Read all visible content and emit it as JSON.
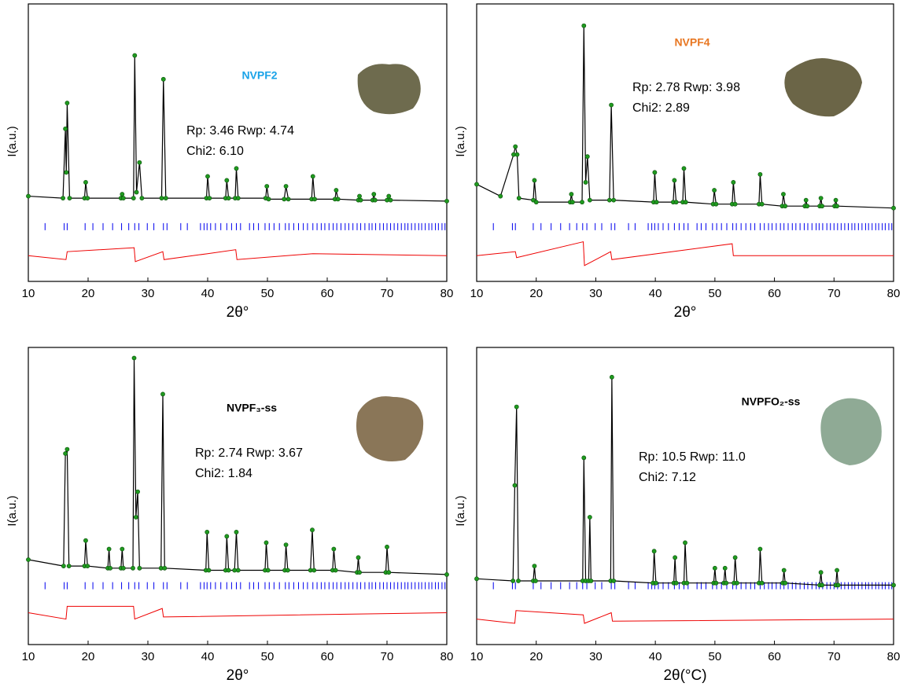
{
  "chart_data": [
    {
      "type": "line",
      "label": "NVPF2",
      "label_color": "#1aa3e8",
      "stats": [
        "Rp:  3.46    Rwp:  4.74",
        "Chi2:  6.10"
      ],
      "x_label": "2θ°",
      "y_label": "I(a.u.)",
      "xlim": [
        10,
        80
      ],
      "xticks": [
        10,
        20,
        30,
        40,
        50,
        60,
        70,
        80
      ],
      "ylim": [
        -40,
        100
      ],
      "x": [
        10,
        15.8,
        16.2,
        16.35,
        16.5,
        16.9,
        19.4,
        19.6,
        19.9,
        25.5,
        25.7,
        25.9,
        27.6,
        27.8,
        28.1,
        28.6,
        29,
        32.3,
        32.6,
        33,
        39.8,
        40,
        40.3,
        43,
        43.2,
        43.5,
        44.6,
        44.8,
        45.1,
        49.7,
        49.9,
        50.2,
        52.8,
        53.1,
        53.5,
        57.4,
        57.6,
        57.9,
        61.3,
        61.5,
        61.8,
        65.2,
        65.4,
        65.6,
        67.6,
        67.8,
        68,
        70,
        70.3,
        70.6,
        80
      ],
      "values": [
        3,
        2,
        37,
        15,
        50,
        2,
        2,
        10,
        2,
        2,
        4,
        2,
        2,
        74,
        5,
        20,
        2,
        2,
        62,
        2,
        2,
        13,
        2,
        2,
        11,
        2,
        2,
        17,
        2,
        2,
        8,
        1.5,
        1.5,
        8,
        1.5,
        1.5,
        13,
        1.5,
        1.5,
        6,
        1.5,
        1,
        3,
        1,
        1,
        4,
        1,
        1,
        3,
        1,
        0.5
      ],
      "difference": {
        "x": [
          10,
          16.3,
          16.5,
          27.7,
          27.9,
          32.5,
          32.7,
          40,
          44.7,
          44.9,
          57.6,
          80
        ],
        "values": [
          -27,
          -29,
          -25,
          -23,
          -30,
          -25,
          -29,
          -26,
          -24,
          -29,
          -26,
          -27
        ]
      },
      "reflections": [
        12.8,
        16,
        16.5,
        19.5,
        20.8,
        22.5,
        24.1,
        25.6,
        26.8,
        27.8,
        28.5,
        29.9,
        31,
        32.6,
        33.2,
        35.5,
        36.6,
        38.8,
        39.4,
        39.9,
        40.5,
        41.3,
        42.2,
        43.2,
        44,
        44.8,
        45.5,
        47,
        47.7,
        48.5,
        49.6,
        50.3,
        51.1,
        52,
        53,
        53.6,
        54.4,
        55.2,
        56,
        56.7,
        57.6,
        58.3,
        59,
        59.6,
        60.3,
        61,
        61.6,
        62.3,
        63,
        63.6,
        64.3,
        65,
        65.6,
        66.3,
        67,
        67.5,
        68.1,
        68.8,
        69.4,
        70,
        70.6,
        71.2,
        71.8,
        72.4,
        73,
        73.5,
        74.1,
        74.7,
        75.3,
        75.8,
        76.4,
        77,
        77.5,
        78.1,
        78.6,
        79.2,
        79.7
      ],
      "observed_color": "#1f9a1f",
      "calculated_color": "#000000",
      "reflection_color": "#0000ee",
      "difference_color": "#ee0000"
    },
    {
      "type": "line",
      "label": "NVPF4",
      "label_color": "#e87722",
      "stats": [
        "Rp: 2.78    Rwp: 3.98",
        "Chi2: 2.89"
      ],
      "x_label": "2θ°",
      "y_label": "I(a.u.)",
      "xlim": [
        10,
        80
      ],
      "xticks": [
        10,
        20,
        30,
        40,
        50,
        60,
        70,
        80
      ],
      "ylim": [
        -40,
        100
      ],
      "x": [
        10,
        14,
        16.2,
        16.5,
        16.8,
        17.1,
        19.5,
        19.7,
        20,
        25.7,
        25.9,
        26.1,
        27.7,
        28,
        28.3,
        28.6,
        29,
        32.3,
        32.6,
        33,
        39.7,
        39.9,
        40.2,
        43,
        43.2,
        43.5,
        44.6,
        44.8,
        45.1,
        49.7,
        49.9,
        50.2,
        52.9,
        53.1,
        53.4,
        57.4,
        57.6,
        57.9,
        61.3,
        61.5,
        61.8,
        65.1,
        65.3,
        65.5,
        67.6,
        67.8,
        68,
        70.1,
        70.3,
        70.5,
        80
      ],
      "values": [
        9,
        3,
        24,
        28,
        24,
        2,
        1,
        11,
        0,
        0,
        4,
        0,
        0,
        89,
        10,
        23,
        1,
        1,
        49,
        1,
        0,
        15,
        0,
        0,
        11,
        0,
        0,
        17,
        0,
        -1,
        6,
        -1,
        -1,
        10,
        -1,
        -1,
        14,
        -1,
        -2,
        4,
        -2,
        -2,
        1,
        -2,
        -2,
        2,
        -2,
        -2,
        1,
        -2,
        -3
      ],
      "difference": {
        "x": [
          10,
          16.5,
          16.7,
          27.9,
          28.1,
          32.5,
          32.7,
          52.9,
          53.1,
          80
        ],
        "values": [
          -27,
          -25,
          -28,
          -20,
          -32,
          -25,
          -29,
          -21,
          -27,
          -27
        ]
      },
      "reflections": [
        12.8,
        16,
        16.5,
        19.5,
        20.8,
        22.5,
        24.1,
        25.6,
        26.8,
        27.8,
        28.5,
        29.9,
        31,
        32.6,
        33.2,
        35.5,
        36.6,
        38.8,
        39.4,
        39.9,
        40.5,
        41.3,
        42.2,
        43.2,
        44,
        44.8,
        45.5,
        47,
        47.7,
        48.5,
        49.6,
        50.3,
        51.1,
        52,
        53,
        53.6,
        54.4,
        55.2,
        56,
        56.7,
        57.6,
        58.3,
        59,
        59.6,
        60.3,
        61,
        61.6,
        62.3,
        63,
        63.6,
        64.3,
        65,
        65.6,
        66.3,
        67,
        67.5,
        68.1,
        68.8,
        69.4,
        70,
        70.6,
        71.2,
        71.8,
        72.4,
        73,
        73.5,
        74.1,
        74.7,
        75.3,
        75.8,
        76.4,
        77,
        77.5,
        78.1,
        78.6,
        79.2,
        79.7
      ],
      "observed_color": "#1f9a1f",
      "calculated_color": "#000000",
      "reflection_color": "#0000ee",
      "difference_color": "#ee0000"
    },
    {
      "type": "line",
      "label": "NVPF₃-ss",
      "label_color": "#000000",
      "stats": [
        "Rp: 2.74     Rwp: 3.67",
        "Chi2: 1.84"
      ],
      "x_label": "2θ°",
      "y_label": "I(a.u.)",
      "xlim": [
        10,
        80
      ],
      "xticks": [
        10,
        20,
        30,
        40,
        50,
        60,
        70,
        80
      ],
      "ylim": [
        -40,
        100
      ],
      "x": [
        10,
        15.9,
        16.2,
        16.5,
        16.8,
        19.4,
        19.6,
        19.9,
        23.3,
        23.5,
        23.7,
        25.5,
        25.7,
        25.9,
        27.5,
        27.7,
        28,
        28.3,
        28.6,
        32.2,
        32.5,
        32.8,
        39.7,
        39.9,
        40.2,
        43,
        43.2,
        43.5,
        44.5,
        44.8,
        45.1,
        49.6,
        49.8,
        50.1,
        52.9,
        53.1,
        53.4,
        57.2,
        57.5,
        57.8,
        60.9,
        61.1,
        61.4,
        65,
        65.2,
        65.4,
        69.8,
        70,
        70.3,
        80
      ],
      "values": [
        0,
        -3,
        50,
        52,
        -3,
        -3,
        9,
        -3,
        -4,
        5,
        -4,
        -4,
        5,
        -4,
        -4,
        95,
        20,
        32,
        -4,
        -4,
        78,
        -4,
        -5,
        13,
        -5,
        -5,
        11,
        -5,
        -5,
        13,
        -5,
        -5,
        8,
        -5,
        -5,
        7,
        -5,
        -5,
        14,
        -5,
        -5,
        5,
        -5,
        -6,
        1,
        -6,
        -6,
        6,
        -6,
        -7
      ],
      "difference": {
        "x": [
          10,
          16.3,
          16.5,
          27.6,
          27.8,
          32.4,
          32.6,
          80
        ],
        "values": [
          -25,
          -28,
          -22,
          -22,
          -28,
          -23,
          -27,
          -25
        ]
      },
      "reflections": [
        12.8,
        16,
        16.5,
        19.5,
        20.8,
        22.5,
        24.1,
        25.6,
        26.8,
        27.8,
        28.5,
        29.9,
        31,
        32.6,
        33.2,
        35.5,
        36.6,
        38.8,
        39.4,
        39.9,
        40.5,
        41.3,
        42.2,
        43.2,
        44,
        44.8,
        45.5,
        47,
        47.7,
        48.5,
        49.6,
        50.3,
        51.1,
        52,
        53,
        53.6,
        54.4,
        55.2,
        56,
        56.7,
        57.6,
        58.3,
        59,
        59.6,
        60.3,
        61,
        61.6,
        62.3,
        63,
        63.6,
        64.3,
        65,
        65.6,
        66.3,
        67,
        67.5,
        68.1,
        68.8,
        69.4,
        70,
        70.6,
        71.2,
        71.8,
        72.4,
        73,
        73.5,
        74.1,
        74.7,
        75.3,
        75.8,
        76.4,
        77,
        77.5,
        78.1,
        78.6,
        79.2,
        79.7
      ],
      "observed_color": "#1f9a1f",
      "calculated_color": "#000000",
      "reflection_color": "#0000ee",
      "difference_color": "#ee0000"
    },
    {
      "type": "line",
      "label": "NVPFO₂-ss",
      "label_color": "#000000",
      "stats": [
        "Rp: 10.5     Rwp: 11.0",
        "Chi2: 7.12"
      ],
      "x_label": "2θ(°C)",
      "y_label": "I(a.u.)",
      "xlim": [
        10,
        80
      ],
      "xticks": [
        10,
        20,
        30,
        40,
        50,
        60,
        70,
        80
      ],
      "ylim": [
        -40,
        100
      ],
      "x": [
        10,
        16.1,
        16.4,
        16.7,
        17,
        19.5,
        19.7,
        19.9,
        27.8,
        28,
        28.3,
        28.8,
        29,
        29.2,
        32.5,
        32.7,
        33,
        39.6,
        39.8,
        40.1,
        43.1,
        43.3,
        43.5,
        44.8,
        45,
        45.3,
        49.8,
        50,
        50.2,
        51.5,
        51.7,
        51.9,
        53.2,
        53.4,
        53.7,
        57.4,
        57.6,
        57.9,
        61.4,
        61.6,
        61.8,
        67.6,
        67.8,
        68,
        70.3,
        70.5,
        70.7,
        80
      ],
      "values": [
        -9,
        -10,
        35,
        72,
        -10,
        -10,
        -3,
        -10,
        -10,
        48,
        -10,
        -10,
        20,
        -10,
        -10,
        86,
        -10,
        -11,
        4,
        -11,
        -11,
        1,
        -11,
        -11,
        8,
        -11,
        -11,
        -4,
        -11,
        -11,
        -4,
        -11,
        -11,
        1,
        -11,
        -11,
        5,
        -11,
        -11,
        -5,
        -11,
        -12,
        -6,
        -12,
        -12,
        -5,
        -12,
        -12
      ],
      "difference": {
        "x": [
          10,
          16.4,
          16.6,
          27.9,
          28.1,
          32.6,
          32.8,
          80
        ],
        "values": [
          -28,
          -30,
          -24,
          -26,
          -30,
          -25,
          -29,
          -28
        ]
      },
      "reflections": [
        12.8,
        16,
        16.5,
        19.5,
        20.8,
        22.5,
        24.1,
        25.6,
        26.8,
        27.8,
        28.5,
        29.9,
        31,
        32.6,
        33.2,
        35.5,
        36.6,
        38.8,
        39.4,
        39.9,
        40.5,
        41.3,
        42.2,
        43.2,
        44,
        44.8,
        45.5,
        47,
        47.7,
        48.5,
        49.6,
        50.3,
        51.1,
        52,
        53,
        53.6,
        54.4,
        55.2,
        56,
        56.7,
        57.6,
        58.3,
        59,
        59.6,
        60.3,
        61,
        61.6,
        62.3,
        63,
        63.6,
        64.3,
        65,
        65.6,
        66.3,
        67,
        67.5,
        68.1,
        68.8,
        69.4,
        70,
        70.6,
        71.2,
        71.8,
        72.4,
        73,
        73.5,
        74.1,
        74.7,
        75.3,
        75.8,
        76.4,
        77,
        77.5,
        78.1,
        78.6,
        79.2,
        79.7
      ],
      "observed_color": "#1f9a1f",
      "calculated_color": "#000000",
      "reflection_color": "#0000ee",
      "difference_color": "#ee0000"
    }
  ]
}
